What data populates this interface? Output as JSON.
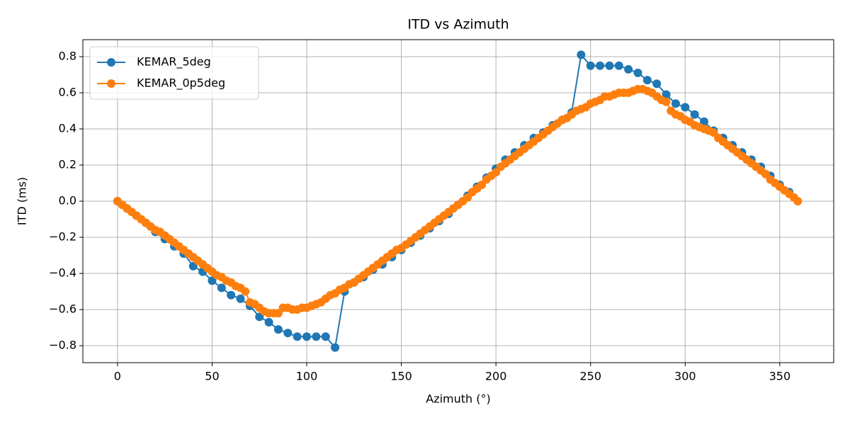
{
  "chart_data": {
    "type": "line",
    "title": "ITD vs Azimuth",
    "xlabel": "Azimuth (°)",
    "ylabel": "ITD (ms)",
    "xlim": [
      -18.3,
      378.5
    ],
    "xticks": [
      0,
      50,
      100,
      150,
      200,
      250,
      300,
      350
    ],
    "ylim": [
      -0.894,
      0.894
    ],
    "yticks": [
      {
        "value": -0.8,
        "label": "−0.8"
      },
      {
        "value": -0.6,
        "label": "−0.6"
      },
      {
        "value": -0.4,
        "label": "−0.4"
      },
      {
        "value": -0.2,
        "label": "−0.2"
      },
      {
        "value": 0,
        "label": "0.0"
      },
      0.2,
      0.4,
      0.6,
      0.8
    ],
    "grid": true,
    "legend": "upper left",
    "series": [
      {
        "name": "KEMAR_5deg",
        "color": "#1f77b4",
        "x": [
          0,
          5,
          10,
          15,
          20,
          25,
          30,
          35,
          40,
          45,
          50,
          55,
          60,
          65,
          70,
          75,
          80,
          85,
          90,
          95,
          100,
          105,
          110,
          115,
          120,
          125,
          130,
          135,
          140,
          145,
          150,
          155,
          160,
          165,
          170,
          175,
          180,
          185,
          190,
          195,
          200,
          205,
          210,
          215,
          220,
          225,
          230,
          235,
          240,
          245,
          250,
          255,
          260,
          265,
          270,
          275,
          280,
          285,
          290,
          295,
          300,
          305,
          310,
          315,
          320,
          325,
          330,
          335,
          340,
          345,
          350,
          355
        ],
        "values": [
          0,
          -0.04,
          -0.08,
          -0.12,
          -0.17,
          -0.21,
          -0.25,
          -0.29,
          -0.36,
          -0.39,
          -0.44,
          -0.48,
          -0.52,
          -0.54,
          -0.58,
          -0.64,
          -0.67,
          -0.71,
          -0.73,
          -0.75,
          -0.75,
          -0.75,
          -0.75,
          -0.81,
          -0.5,
          -0.45,
          -0.42,
          -0.38,
          -0.35,
          -0.31,
          -0.27,
          -0.23,
          -0.19,
          -0.15,
          -0.11,
          -0.07,
          -0.02,
          0.03,
          0.08,
          0.13,
          0.18,
          0.23,
          0.27,
          0.31,
          0.35,
          0.38,
          0.42,
          0.45,
          0.49,
          0.81,
          0.75,
          0.75,
          0.75,
          0.75,
          0.73,
          0.71,
          0.67,
          0.65,
          0.59,
          0.54,
          0.52,
          0.48,
          0.44,
          0.39,
          0.35,
          0.31,
          0.27,
          0.23,
          0.19,
          0.14,
          0.09,
          0.05
        ]
      },
      {
        "name": "KEMAR_0p5deg",
        "color": "#ff7f0e",
        "x": [
          0,
          2.5,
          5,
          7.5,
          10,
          12.5,
          15,
          17.5,
          20,
          22.5,
          25,
          27.5,
          30,
          32.5,
          35,
          37.5,
          40,
          42.5,
          45,
          47.5,
          50,
          52.5,
          55,
          57.5,
          60,
          62.5,
          65,
          67.5,
          70,
          72.5,
          75,
          77.5,
          80,
          82.5,
          85,
          87.5,
          90,
          92.5,
          95,
          97.5,
          100,
          102.5,
          105,
          107.5,
          110,
          112.5,
          115,
          117.5,
          120,
          122.5,
          125,
          127.5,
          130,
          132.5,
          135,
          137.5,
          140,
          142.5,
          145,
          147.5,
          150,
          152.5,
          155,
          157.5,
          160,
          162.5,
          165,
          167.5,
          170,
          172.5,
          175,
          177.5,
          180,
          182.5,
          185,
          187.5,
          190,
          192.5,
          195,
          197.5,
          200,
          202.5,
          205,
          207.5,
          210,
          212.5,
          215,
          217.5,
          220,
          222.5,
          225,
          227.5,
          230,
          232.5,
          235,
          237.5,
          240,
          242.5,
          245,
          247.5,
          250,
          252.5,
          255,
          257.5,
          260,
          262.5,
          265,
          267.5,
          270,
          272.5,
          275,
          277.5,
          280,
          282.5,
          285,
          287.5,
          290,
          292.5,
          295,
          297.5,
          300,
          302.5,
          305,
          307.5,
          310,
          312.5,
          315,
          317.5,
          320,
          322.5,
          325,
          327.5,
          330,
          332.5,
          335,
          337.5,
          340,
          342.5,
          345,
          347.5,
          350,
          352.5,
          355,
          357.5,
          359.5
        ],
        "values": [
          0,
          -0.02,
          -0.04,
          -0.06,
          -0.08,
          -0.1,
          -0.12,
          -0.14,
          -0.16,
          -0.17,
          -0.19,
          -0.21,
          -0.23,
          -0.25,
          -0.27,
          -0.29,
          -0.31,
          -0.33,
          -0.35,
          -0.37,
          -0.39,
          -0.41,
          -0.42,
          -0.44,
          -0.45,
          -0.47,
          -0.48,
          -0.5,
          -0.56,
          -0.57,
          -0.59,
          -0.61,
          -0.62,
          -0.62,
          -0.62,
          -0.59,
          -0.59,
          -0.6,
          -0.6,
          -0.59,
          -0.59,
          -0.58,
          -0.57,
          -0.56,
          -0.54,
          -0.52,
          -0.51,
          -0.49,
          -0.48,
          -0.46,
          -0.45,
          -0.43,
          -0.41,
          -0.39,
          -0.37,
          -0.35,
          -0.33,
          -0.31,
          -0.29,
          -0.27,
          -0.26,
          -0.24,
          -0.22,
          -0.2,
          -0.18,
          -0.16,
          -0.14,
          -0.12,
          -0.1,
          -0.08,
          -0.06,
          -0.04,
          -0.02,
          0,
          0.02,
          0.05,
          0.07,
          0.09,
          0.12,
          0.14,
          0.16,
          0.19,
          0.21,
          0.23,
          0.25,
          0.27,
          0.29,
          0.31,
          0.33,
          0.35,
          0.37,
          0.39,
          0.41,
          0.43,
          0.45,
          0.46,
          0.48,
          0.5,
          0.51,
          0.52,
          0.54,
          0.55,
          0.56,
          0.58,
          0.58,
          0.59,
          0.6,
          0.6,
          0.6,
          0.61,
          0.62,
          0.62,
          0.61,
          0.6,
          0.58,
          0.56,
          0.55,
          0.5,
          0.48,
          0.47,
          0.45,
          0.44,
          0.42,
          0.41,
          0.4,
          0.39,
          0.38,
          0.35,
          0.33,
          0.31,
          0.29,
          0.27,
          0.25,
          0.23,
          0.21,
          0.19,
          0.17,
          0.15,
          0.12,
          0.1,
          0.08,
          0.06,
          0.04,
          0.02,
          0
        ]
      }
    ]
  }
}
